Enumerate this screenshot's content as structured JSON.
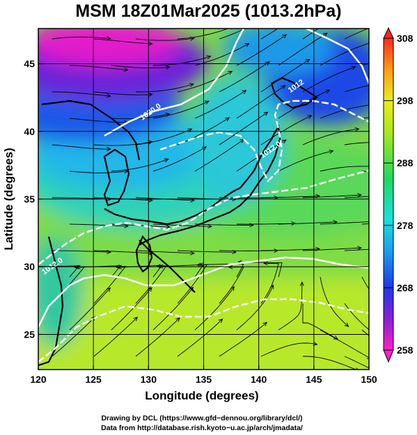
{
  "chart_data": {
    "type": "heatmap",
    "title": "MSM 18Z01Mar2025 (1013.2hPa)",
    "xlabel": "Longitude (degrees)",
    "ylabel": "Latitude  (degrees)",
    "xlim": [
      120,
      150
    ],
    "ylim": [
      22.4,
      47.6
    ],
    "x_ticks": [
      "120",
      "125",
      "130",
      "135",
      "140",
      "145",
      "150"
    ],
    "y_ticks": [
      "25",
      "30",
      "35",
      "40",
      "45"
    ],
    "colorbar": {
      "min": 258,
      "max": 308,
      "tick_labels": [
        "258",
        "268",
        "278",
        "288",
        "298",
        "308"
      ]
    },
    "isobar_labels": [
      {
        "text": "1020.0",
        "lon": 130.3,
        "lat": 41.3
      },
      {
        "text": "1012",
        "lon": 143.5,
        "lat": 43.2
      },
      {
        "text": "1012.0",
        "lon": 141.2,
        "lat": 38.5
      },
      {
        "text": "1012.0",
        "lon": 121.4,
        "lat": 29.9
      }
    ],
    "grid": true
  },
  "credits": {
    "line1": "Drawing by DCL (https://www.gfd−dennou.org/library/dcl/)",
    "line2": "Data from http://database.rish.kyoto−u.ac.jp/arch/jmadata/"
  }
}
